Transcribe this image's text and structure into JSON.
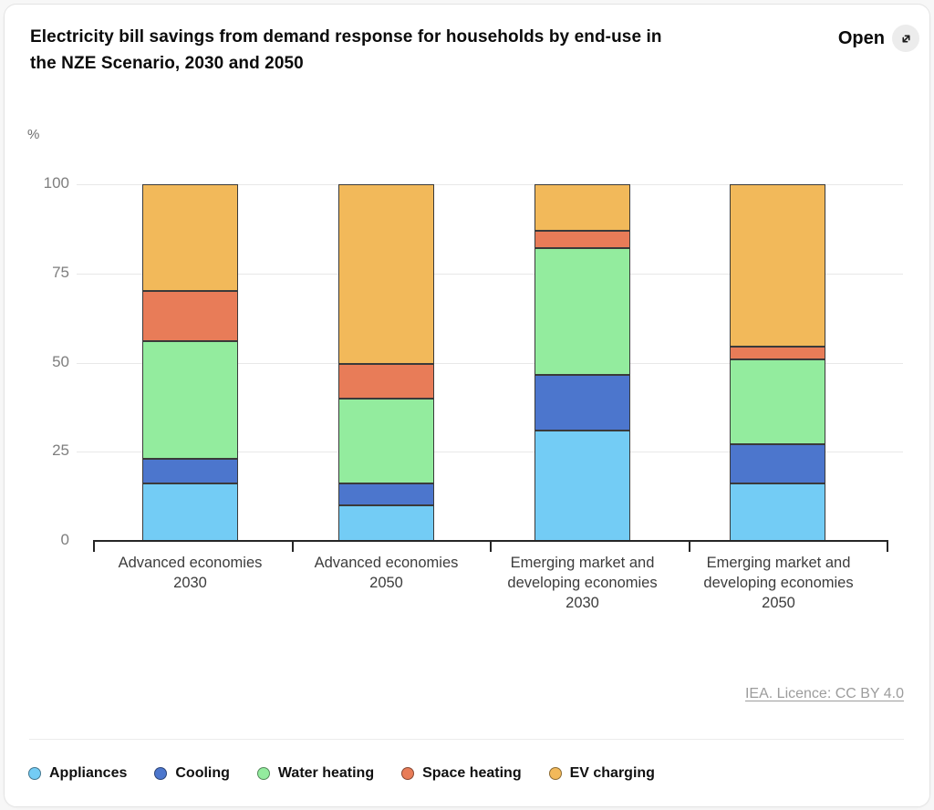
{
  "header": {
    "title": "Electricity bill savings from demand response for households by end-use in\nthe NZE Scenario, 2030 and 2050",
    "open": {
      "label": "Open",
      "icon": "expand-arrow"
    }
  },
  "chart_data": {
    "type": "bar",
    "stacked": true,
    "title": "Electricity bill savings from demand response for households by end-use in the NZE Scenario, 2030 and 2050",
    "unit_label": "%",
    "categories": [
      "Advanced economies\n2030",
      "Advanced economies\n2050",
      "Emerging market and\ndeveloping economies\n2030",
      "Emerging market and\ndeveloping economies\n2050"
    ],
    "series": [
      {
        "name": "Appliances",
        "color": "#73CCF5",
        "values": [
          16,
          10,
          31,
          16
        ]
      },
      {
        "name": "Cooling",
        "color": "#4C76CD",
        "values": [
          7,
          6,
          15.5,
          11
        ]
      },
      {
        "name": "Water heating",
        "color": "#93EC9E",
        "values": [
          33,
          24,
          35.5,
          24
        ]
      },
      {
        "name": "Space heating",
        "color": "#E87C58",
        "values": [
          14,
          9.5,
          5,
          3.5
        ]
      },
      {
        "name": "EV charging",
        "color": "#F2B95A",
        "values": [
          30,
          50.5,
          13,
          45.5
        ]
      }
    ],
    "y_ticks": [
      0,
      25,
      50,
      75,
      100
    ],
    "ylim": [
      0,
      100
    ],
    "grid": true,
    "legend_position": "bottom",
    "bar_outline": "#3a3a3a"
  },
  "source": {
    "label": "IEA. Licence: CC BY 4.0"
  }
}
